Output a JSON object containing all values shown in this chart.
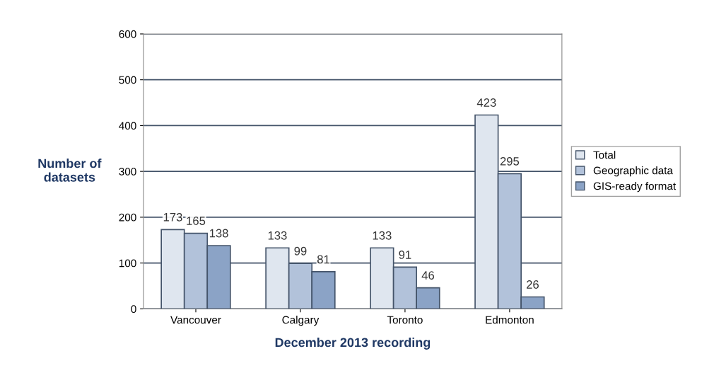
{
  "chart_data": {
    "type": "bar",
    "xlabel": "December 2013 recording",
    "ylabel": "Number of\ndatasets",
    "categories": [
      "Vancouver",
      "Calgary",
      "Toronto",
      "Edmonton"
    ],
    "series": [
      {
        "name": "Total",
        "color": "#dfe6ef",
        "values": [
          173,
          133,
          133,
          423
        ]
      },
      {
        "name": "Geographic data",
        "color": "#b2c2da",
        "values": [
          165,
          99,
          91,
          295
        ]
      },
      {
        "name": "GIS-ready format",
        "color": "#8ba3c6",
        "values": [
          138,
          81,
          46,
          26
        ]
      }
    ],
    "ylim": [
      0,
      600
    ],
    "yticks": [
      0,
      100,
      200,
      300,
      400,
      500,
      600
    ],
    "grid": "y",
    "legend": "right",
    "data_labels": true
  }
}
